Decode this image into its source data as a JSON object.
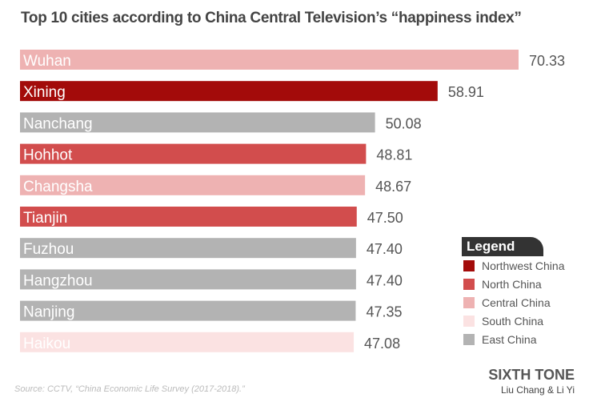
{
  "title": "Top 10 cities according to China Central Television’s “happiness index”",
  "chart_data": {
    "type": "bar",
    "orientation": "horizontal",
    "title": "Top 10 cities according to China Central Television’s “happiness index”",
    "categories": [
      "Wuhan",
      "Xining",
      "Nanchang",
      "Hohhot",
      "Changsha",
      "Tianjin",
      "Fuzhou",
      "Hangzhou",
      "Nanjing",
      "Haikou"
    ],
    "values": [
      70.33,
      58.91,
      50.08,
      48.81,
      48.67,
      47.5,
      47.4,
      47.4,
      47.35,
      47.08
    ],
    "value_labels": [
      "70.33",
      "58.91",
      "50.08",
      "48.81",
      "48.67",
      "47.50",
      "47.40",
      "47.40",
      "47.35",
      "47.08"
    ],
    "regions": [
      "Central China",
      "Northwest China",
      "East China",
      "North China",
      "Central China",
      "North China",
      "East China",
      "East China",
      "East China",
      "South China"
    ],
    "xlim": [
      0,
      70.33
    ],
    "grid": false,
    "legend_placement": "bottom-right"
  },
  "legend": {
    "title": "Legend",
    "items": [
      {
        "label": "Northwest China",
        "color": "#a30b0a"
      },
      {
        "label": "North China",
        "color": "#d24d4d"
      },
      {
        "label": "Central China",
        "color": "#eeb2b2"
      },
      {
        "label": "South China",
        "color": "#fbe2e2"
      },
      {
        "label": "East China",
        "color": "#b3b3b3"
      }
    ]
  },
  "source": "Source: CCTV, “China Economic Life Survey (2017-2018).”",
  "brand": "SIXTH TONE",
  "authors": "Liu Chang & Li Yi"
}
